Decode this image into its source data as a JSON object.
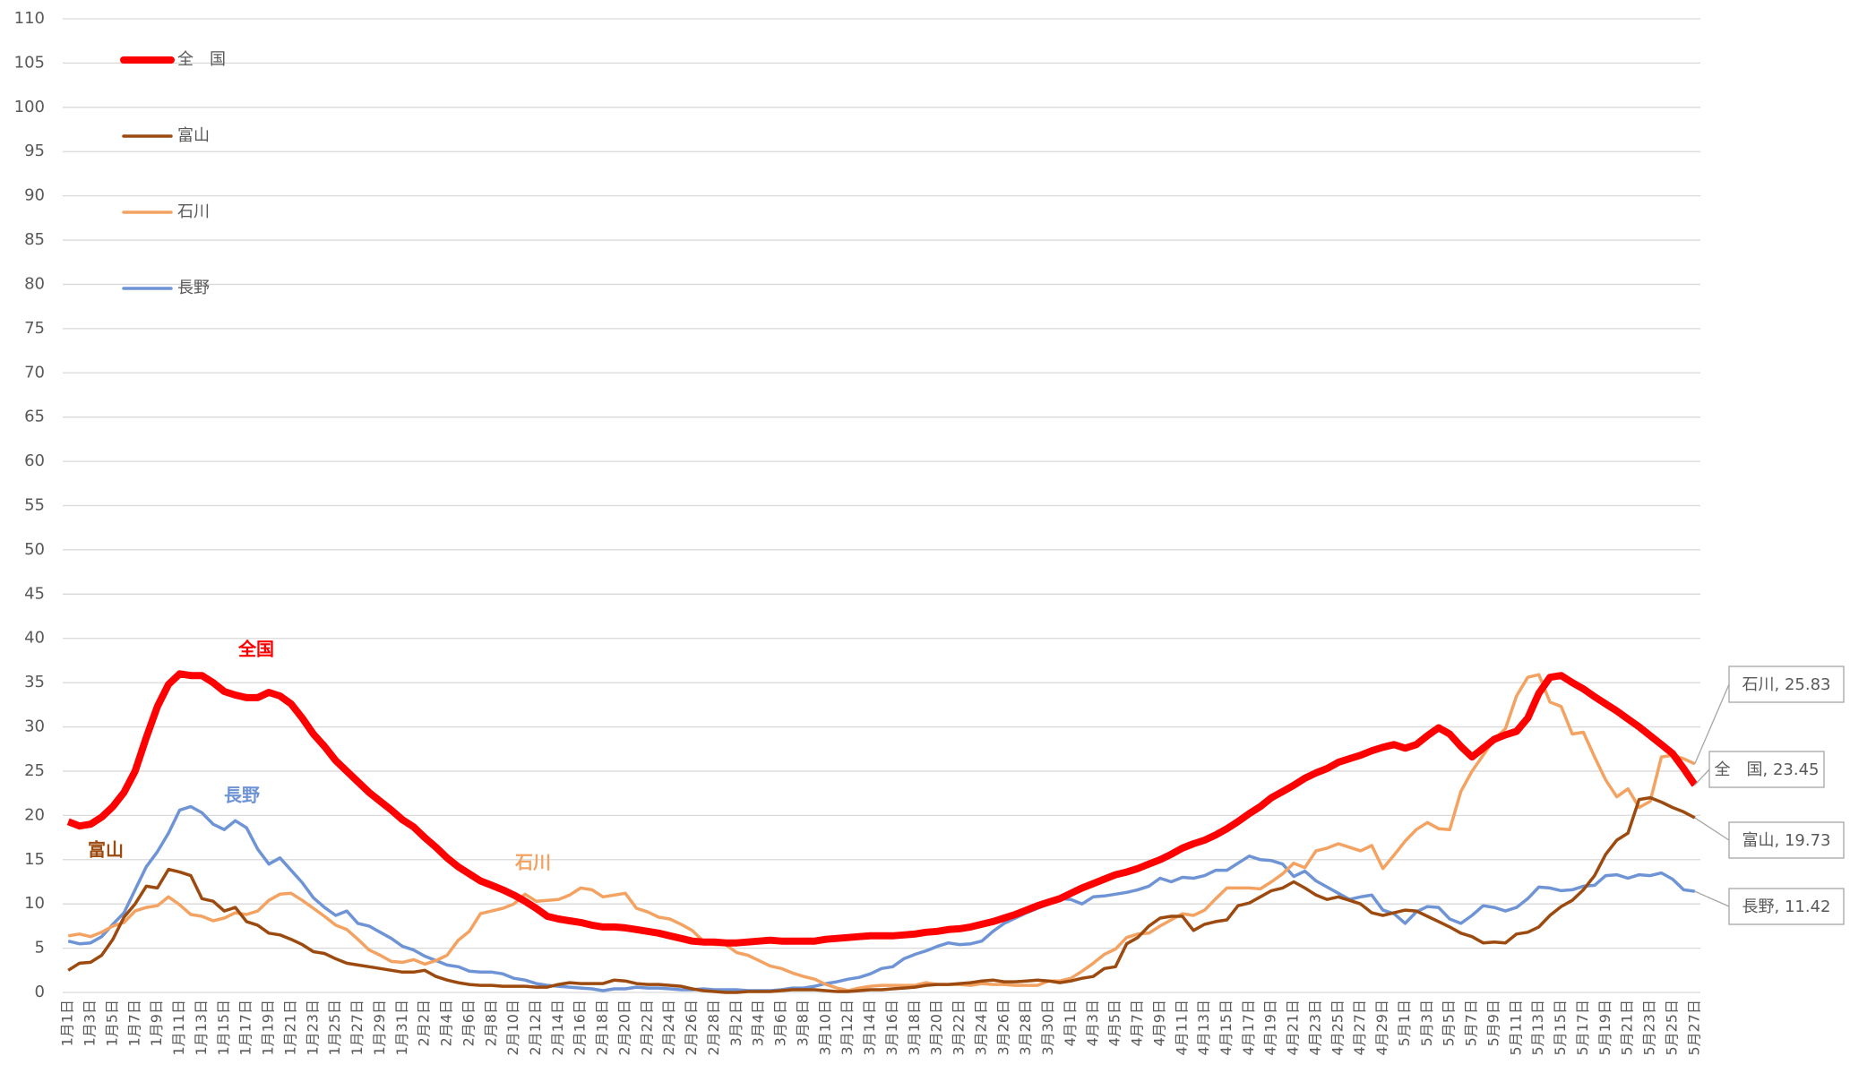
{
  "chart_data": {
    "type": "line",
    "categories": [
      "1月1日",
      null,
      "1月3日",
      null,
      "1月5日",
      null,
      "1月7日",
      null,
      "1月9日",
      null,
      "1月11日",
      null,
      "1月13日",
      null,
      "1月15日",
      null,
      "1月17日",
      null,
      "1月19日",
      null,
      "1月21日",
      null,
      "1月23日",
      null,
      "1月25日",
      null,
      "1月27日",
      null,
      "1月29日",
      null,
      "1月31日",
      null,
      "2月2日",
      null,
      "2月4日",
      null,
      "2月6日",
      null,
      "2月8日",
      null,
      "2月10日",
      null,
      "2月12日",
      null,
      "2月14日",
      null,
      "2月16日",
      null,
      "2月18日",
      null,
      "2月20日",
      null,
      "2月22日",
      null,
      "2月24日",
      null,
      "2月26日",
      null,
      "2月28日",
      null,
      "3月2日",
      null,
      "3月4日",
      null,
      "3月6日",
      null,
      "3月8日",
      null,
      "3月10日",
      null,
      "3月12日",
      null,
      "3月14日",
      null,
      "3月16日",
      null,
      "3月18日",
      null,
      "3月20日",
      null,
      "3月22日",
      null,
      "3月24日",
      null,
      "3月26日",
      null,
      "3月28日",
      null,
      "3月30日",
      null,
      "4月1日",
      null,
      "4月3日",
      null,
      "4月5日",
      null,
      "4月7日",
      null,
      "4月9日",
      null,
      "4月11日",
      null,
      "4月13日",
      null,
      "4月15日",
      null,
      "4月17日",
      null,
      "4月19日",
      null,
      "4月21日",
      null,
      "4月23日",
      null,
      "4月25日",
      null,
      "4月27日",
      null,
      "4月29日",
      null,
      "5月1日",
      null,
      "5月3日",
      null,
      "5月5日",
      null,
      "5月7日",
      null,
      "5月9日",
      null,
      "5月11日",
      null,
      "5月13日",
      null,
      "5月15日",
      null,
      "5月17日",
      null,
      "5月19日",
      null,
      "5月21日",
      null,
      "5月23日",
      null,
      "5月25日",
      null,
      "5月27日"
    ],
    "series": [
      {
        "name": "全　国",
        "color": "#ff0000",
        "end_label": "全　国, 23.45",
        "values": [
          19.3,
          18.8,
          19,
          19.8,
          21,
          22.6,
          25,
          28.8,
          32.3,
          34.8,
          36,
          35.8,
          35.8,
          35,
          34,
          33.6,
          33.3,
          33.3,
          33.9,
          33.5,
          32.6,
          31,
          29.2,
          27.8,
          26.2,
          25,
          23.8,
          22.6,
          21.6,
          20.6,
          19.5,
          18.7,
          17.5,
          16.4,
          15.2,
          14.2,
          13.4,
          12.6,
          12.1,
          11.6,
          11,
          10.3,
          9.5,
          8.6,
          8.3,
          8.1,
          7.9,
          7.6,
          7.4,
          7.4,
          7.3,
          7.1,
          6.9,
          6.7,
          6.4,
          6.1,
          5.8,
          5.7,
          5.7,
          5.6,
          5.6,
          5.7,
          5.8,
          5.9,
          5.8,
          5.8,
          5.8,
          5.8,
          6,
          6.1,
          6.2,
          6.3,
          6.4,
          6.4,
          6.4,
          6.5,
          6.6,
          6.8,
          6.9,
          7.1,
          7.2,
          7.4,
          7.7,
          8,
          8.4,
          8.8,
          9.3,
          9.8,
          10.2,
          10.6,
          11.2,
          11.8,
          12.3,
          12.8,
          13.3,
          13.6,
          14,
          14.5,
          15,
          15.6,
          16.3,
          16.8,
          17.2,
          17.8,
          18.5,
          19.3,
          20.2,
          21,
          22,
          22.7,
          23.4,
          24.2,
          24.8,
          25.3,
          26,
          26.4,
          26.8,
          27.3,
          27.7,
          28,
          27.6,
          28,
          29,
          29.9,
          29.2,
          27.8,
          26.6,
          27.6,
          28.6,
          29.1,
          29.5,
          31,
          33.8,
          35.6,
          35.8,
          35,
          34.3,
          33.4,
          32.6,
          31.8,
          30.9,
          30,
          29,
          28,
          27,
          25.3,
          23.45
        ]
      },
      {
        "name": "富山",
        "color": "#9c4a0f",
        "end_label": "富山, 19.73",
        "values": [
          2.5,
          3.3,
          3.4,
          4.2,
          6,
          8.5,
          10,
          12,
          11.8,
          13.9,
          13.6,
          13.2,
          10.6,
          10.3,
          9.2,
          9.6,
          8,
          7.6,
          6.7,
          6.5,
          6,
          5.4,
          4.6,
          4.4,
          3.8,
          3.3,
          3.1,
          2.9,
          2.7,
          2.5,
          2.3,
          2.3,
          2.5,
          1.8,
          1.4,
          1.1,
          0.9,
          0.8,
          0.8,
          0.7,
          0.7,
          0.7,
          0.6,
          0.6,
          0.9,
          1.1,
          1,
          1,
          1,
          1.4,
          1.3,
          1,
          0.9,
          0.9,
          0.8,
          0.7,
          0.4,
          0.2,
          0.1,
          0,
          0,
          0.1,
          0.1,
          0.1,
          0.2,
          0.3,
          0.3,
          0.3,
          0.2,
          0.1,
          0.1,
          0.2,
          0.3,
          0.3,
          0.4,
          0.5,
          0.6,
          0.8,
          0.9,
          0.9,
          1,
          1.1,
          1.3,
          1.4,
          1.2,
          1.2,
          1.3,
          1.4,
          1.3,
          1.1,
          1.3,
          1.6,
          1.8,
          2.7,
          2.9,
          5.5,
          6.2,
          7.5,
          8.4,
          8.6,
          8.6,
          7,
          7.7,
          8,
          8.2,
          9.8,
          10.1,
          10.8,
          11.5,
          11.8,
          12.5,
          11.8,
          11,
          10.5,
          10.8,
          10.4,
          10,
          9,
          8.7,
          9,
          9.3,
          9.2,
          8.6,
          8,
          7.4,
          6.7,
          6.3,
          5.6,
          5.7,
          5.6,
          6.6,
          6.8,
          7.4,
          8.7,
          9.7,
          10.4,
          11.6,
          13.2,
          15.6,
          17.2,
          18,
          21.8,
          22,
          21.5,
          20.9,
          20.4,
          19.73
        ]
      },
      {
        "name": "石川",
        "color": "#f4a261",
        "end_label": "石川, 25.83",
        "values": [
          6.4,
          6.6,
          6.3,
          6.8,
          7.5,
          7.9,
          9.2,
          9.6,
          9.8,
          10.8,
          9.9,
          8.8,
          8.6,
          8.1,
          8.4,
          9,
          8.8,
          9.2,
          10.4,
          11.1,
          11.2,
          10.4,
          9.5,
          8.6,
          7.6,
          7.1,
          6,
          4.8,
          4.2,
          3.5,
          3.4,
          3.7,
          3.2,
          3.6,
          4.2,
          5.9,
          6.9,
          8.9,
          9.2,
          9.5,
          10,
          11.1,
          10.3,
          10.4,
          10.5,
          11,
          11.8,
          11.6,
          10.8,
          11,
          11.2,
          9.5,
          9.1,
          8.5,
          8.3,
          7.7,
          7,
          5.8,
          5.4,
          5.4,
          4.5,
          4.2,
          3.6,
          3,
          2.7,
          2.2,
          1.8,
          1.5,
          0.9,
          0.5,
          0.2,
          0.5,
          0.7,
          0.8,
          0.8,
          0.8,
          0.8,
          1.1,
          0.9,
          0.9,
          0.9,
          0.8,
          1,
          0.9,
          0.9,
          0.8,
          0.8,
          0.8,
          1.3,
          1.3,
          1.6,
          2.4,
          3.3,
          4.3,
          4.9,
          6.2,
          6.6,
          6.7,
          7.5,
          8.2,
          8.9,
          8.7,
          9.3,
          10.6,
          11.8,
          11.8,
          11.8,
          11.7,
          12.5,
          13.4,
          14.6,
          14.1,
          16,
          16.3,
          16.8,
          16.4,
          16,
          16.6,
          14,
          15.5,
          17.1,
          18.4,
          19.2,
          18.5,
          18.4,
          22.7,
          25,
          26.8,
          28.6,
          29.8,
          33.5,
          35.6,
          35.9,
          32.8,
          32.3,
          29.2,
          29.4,
          26.6,
          24,
          22.1,
          23,
          20.9,
          21.6,
          26.6,
          26.8,
          26.4,
          25.83
        ]
      },
      {
        "name": "長野",
        "color": "#6f94d6",
        "end_label": "長野, 11.42",
        "values": [
          5.8,
          5.5,
          5.6,
          6.3,
          7.7,
          9,
          11.6,
          14.2,
          15.9,
          18,
          20.6,
          21,
          20.3,
          19,
          18.4,
          19.4,
          18.6,
          16.2,
          14.5,
          15.2,
          13.8,
          12.4,
          10.7,
          9.6,
          8.7,
          9.2,
          7.8,
          7.5,
          6.8,
          6.1,
          5.2,
          4.8,
          4.1,
          3.6,
          3.1,
          2.9,
          2.4,
          2.3,
          2.3,
          2.1,
          1.6,
          1.4,
          1,
          0.8,
          0.7,
          0.6,
          0.5,
          0.4,
          0.2,
          0.4,
          0.4,
          0.6,
          0.5,
          0.5,
          0.4,
          0.3,
          0.3,
          0.4,
          0.3,
          0.3,
          0.3,
          0.2,
          0.2,
          0.2,
          0.3,
          0.5,
          0.5,
          0.7,
          1,
          1.2,
          1.5,
          1.7,
          2.1,
          2.7,
          2.9,
          3.8,
          4.3,
          4.7,
          5.2,
          5.6,
          5.4,
          5.5,
          5.8,
          6.9,
          7.8,
          8.4,
          9,
          9.5,
          10,
          10.6,
          10.5,
          10,
          10.8,
          10.9,
          11.1,
          11.3,
          11.6,
          12,
          12.9,
          12.5,
          13,
          12.9,
          13.2,
          13.8,
          13.8,
          14.6,
          15.4,
          15,
          14.9,
          14.5,
          13.1,
          13.7,
          12.6,
          11.9,
          11.2,
          10.5,
          10.8,
          11,
          9.3,
          8.9,
          7.8,
          9.1,
          9.7,
          9.6,
          8.3,
          7.8,
          8.7,
          9.8,
          9.6,
          9.2,
          9.6,
          10.6,
          11.9,
          11.8,
          11.5,
          11.6,
          12,
          12.1,
          13.2,
          13.3,
          12.9,
          13.3,
          13.2,
          13.5,
          12.8,
          11.6,
          11.42
        ]
      }
    ],
    "annotations": [
      {
        "text": "全国",
        "color": "#ff0000"
      },
      {
        "text": "長野",
        "color": "#6f94d6"
      },
      {
        "text": "富山",
        "color": "#9c4a0f"
      },
      {
        "text": "石川",
        "color": "#f4a261"
      }
    ],
    "ylim": [
      0,
      110
    ],
    "yticks": [
      0,
      5,
      10,
      15,
      20,
      25,
      30,
      35,
      40,
      45,
      50,
      55,
      60,
      65,
      70,
      75,
      80,
      85,
      90,
      95,
      100,
      105,
      110
    ],
    "grid": true,
    "legend": "upper left"
  }
}
